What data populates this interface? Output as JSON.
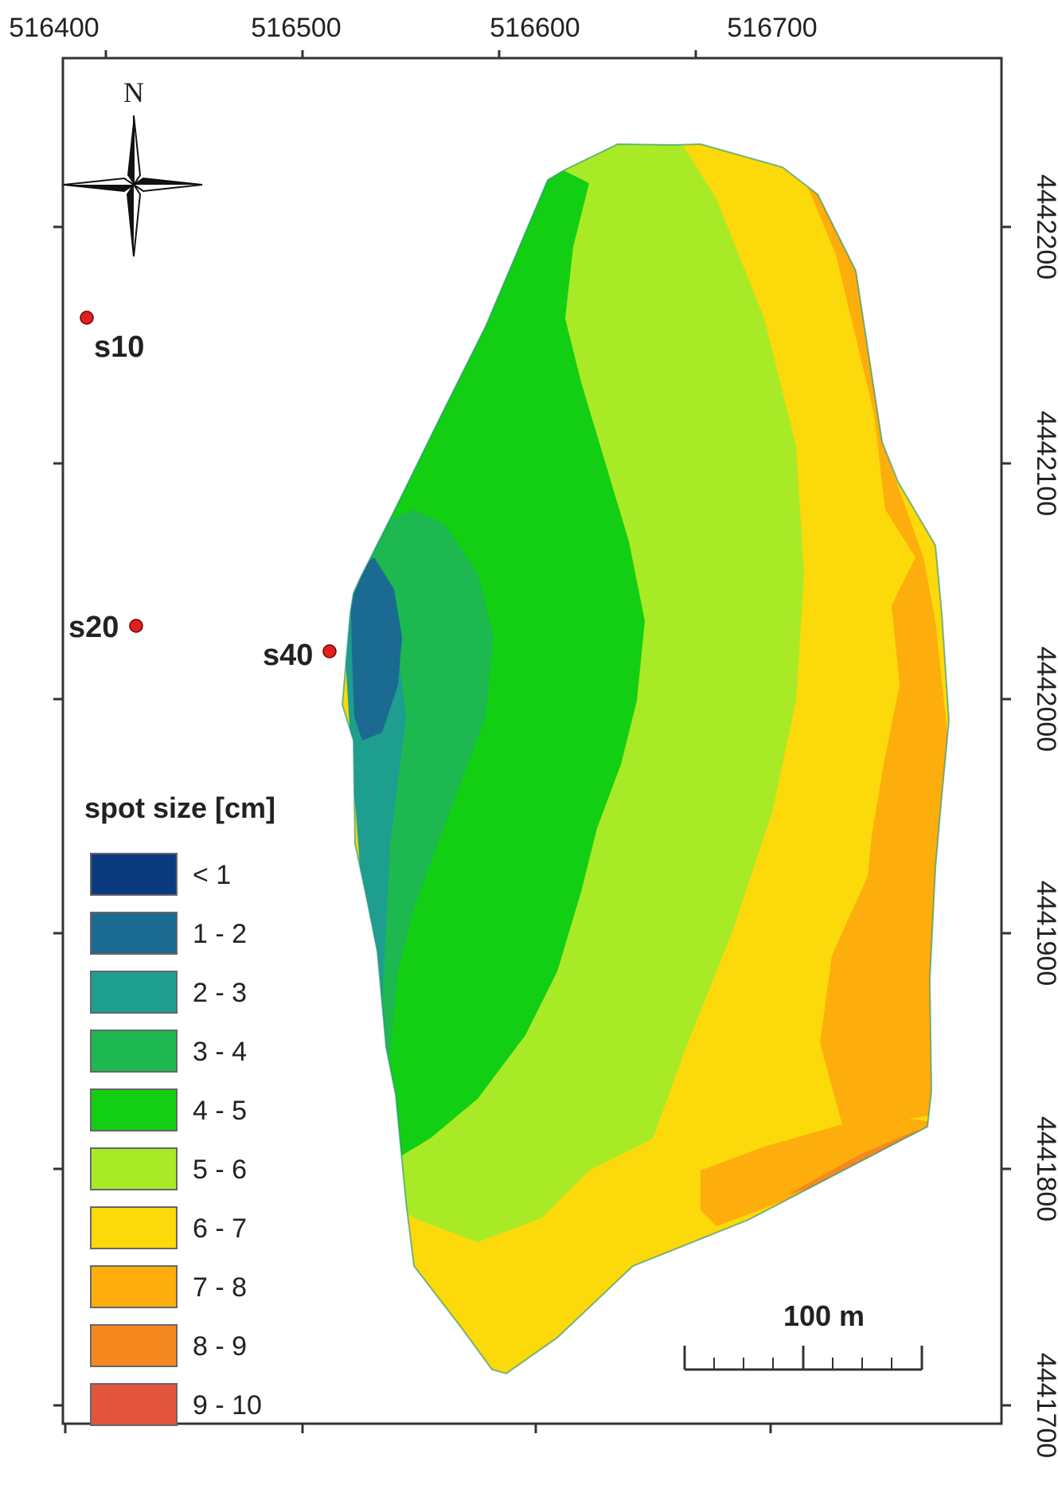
{
  "map": {
    "x_ticks": [
      "516400",
      "516500",
      "516600",
      "516700"
    ],
    "y_ticks": [
      "4442200",
      "4442100",
      "4442000",
      "4441900",
      "4441800",
      "4441700"
    ],
    "north_label": "N",
    "scale_bar": {
      "label": "100 m",
      "length_m": 100
    },
    "stations": [
      {
        "id": "s10",
        "label": "s10",
        "easting": 516410,
        "northing": 4442161
      },
      {
        "id": "s20",
        "label": "s20",
        "easting": 516431,
        "northing": 4442030
      },
      {
        "id": "s40",
        "label": "s40",
        "easting": 516513,
        "northing": 4442019
      }
    ],
    "legend": {
      "title": "spot size [cm]",
      "items": [
        {
          "label": "< 1",
          "color": "#0b3b7e"
        },
        {
          "label": "1 - 2",
          "color": "#1b6a91"
        },
        {
          "label": "2 - 3",
          "color": "#1e9e8e"
        },
        {
          "label": "3 - 4",
          "color": "#1db84f"
        },
        {
          "label": "4 - 5",
          "color": "#13cf13"
        },
        {
          "label": "5 - 6",
          "color": "#a9ea27"
        },
        {
          "label": "6 - 7",
          "color": "#fcd90a"
        },
        {
          "label": "7 - 8",
          "color": "#fdae0c"
        },
        {
          "label": "8 - 9",
          "color": "#f5891f"
        },
        {
          "label": "9 - 10",
          "color": "#e3543c"
        }
      ]
    }
  }
}
